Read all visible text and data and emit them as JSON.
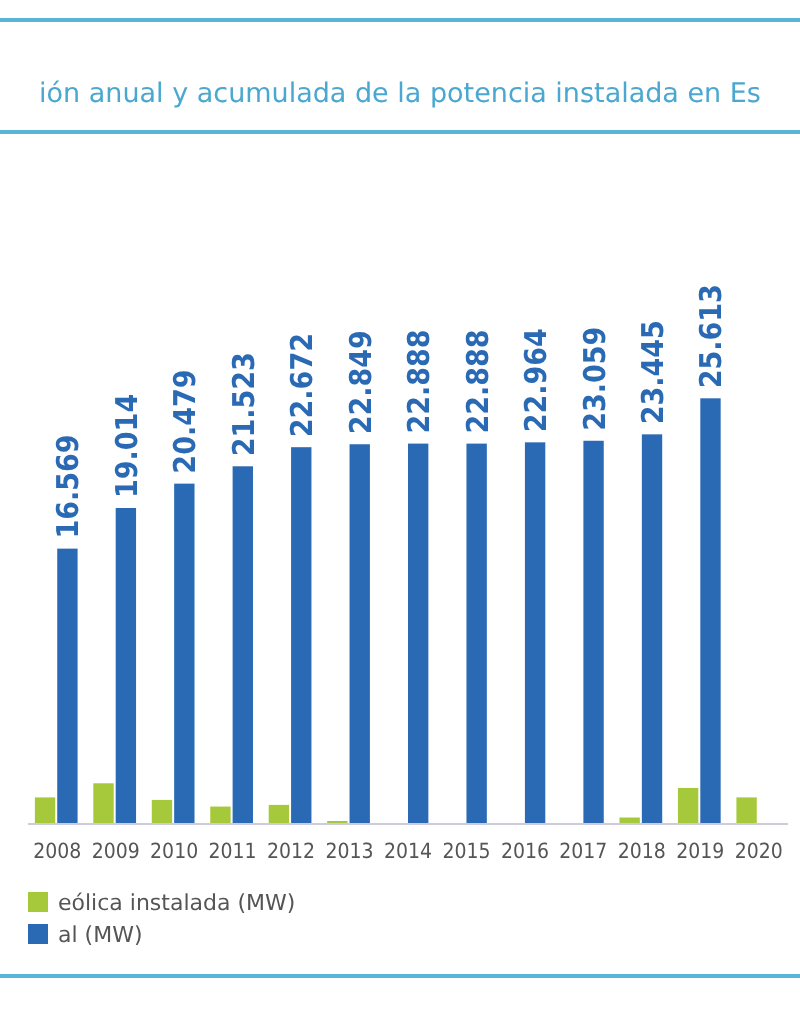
{
  "chart_data": {
    "type": "bar",
    "title": "ión anual y acumulada de la potencia instalada en Es",
    "categories": [
      "2008",
      "2009",
      "2010",
      "2011",
      "2012",
      "2013",
      "2014",
      "2015",
      "2016",
      "2017",
      "2018",
      "2019",
      "2020"
    ],
    "series": [
      {
        "name": "eólica instalada (MW)",
        "color": "#a5c93a",
        "values": [
          1600,
          2450,
          1450,
          1050,
          1150,
          180,
          null,
          null,
          null,
          null,
          390,
          2170,
          1600
        ]
      },
      {
        "name": "al (MW)",
        "color": "#2a6ab4",
        "values": [
          16569,
          19014,
          20479,
          21523,
          22672,
          22849,
          22888,
          22888,
          22964,
          23059,
          23445,
          25613,
          null
        ],
        "value_labels": [
          "16.569",
          "19.014",
          "20.479",
          "21.523",
          "22.672",
          "22.849",
          "22.888",
          "22.888",
          "22.964",
          "23.059",
          "23.445",
          "25.613",
          null
        ]
      }
    ],
    "tick_labels": "x",
    "grid": false,
    "legend": "bottom left"
  }
}
